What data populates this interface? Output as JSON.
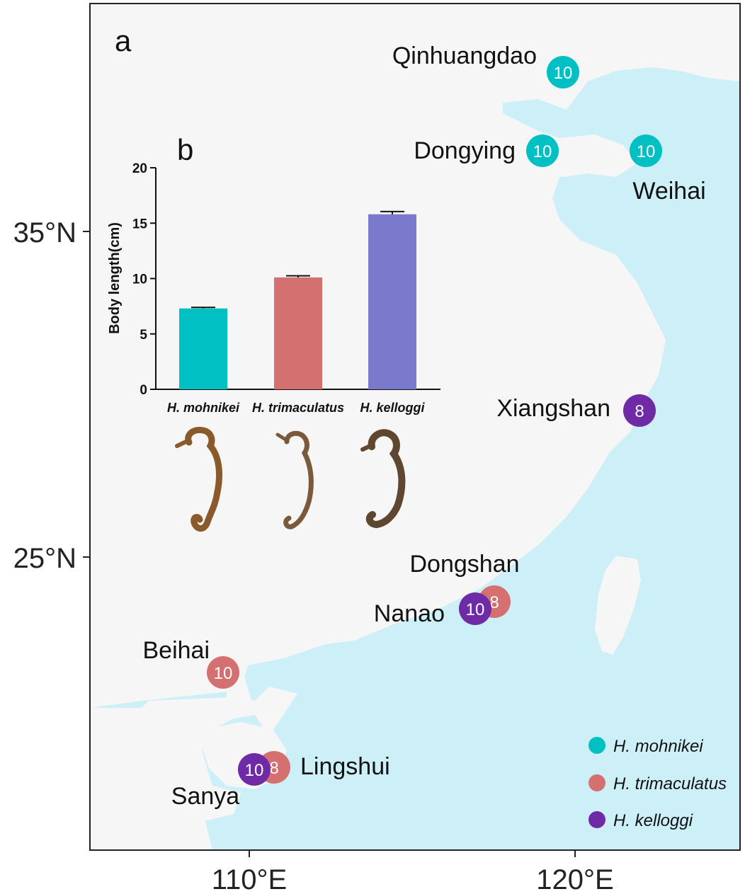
{
  "panel_a_label": "a",
  "panel_b_label": "b",
  "colors": {
    "land": "#f6f6f6",
    "sea": "#cdf0f8",
    "mohnikei": "#00c0c4",
    "trimaculatus": "#d4706f",
    "kelloggi": "#6f2aa6",
    "bar_kelloggi": "#7a79cc"
  },
  "map_axes": {
    "lat_ticks": [
      "35°N",
      "25°N"
    ],
    "lon_ticks": [
      "110°E",
      "120°E"
    ]
  },
  "sites": [
    {
      "name": "Qinhuangdao",
      "species": "mohnikei",
      "count": "10"
    },
    {
      "name": "Dongying",
      "species": "mohnikei",
      "count": "10"
    },
    {
      "name": "Weihai",
      "species": "mohnikei",
      "count": "10"
    },
    {
      "name": "Xiangshan",
      "species": "kelloggi",
      "count": "8"
    },
    {
      "name": "Dongshan",
      "species": "trimaculatus",
      "count": "8"
    },
    {
      "name": "Nanao",
      "species": "kelloggi",
      "count": "10"
    },
    {
      "name": "Beihai",
      "species": "trimaculatus",
      "count": "10"
    },
    {
      "name": "Lingshui",
      "species": "trimaculatus",
      "count": "8"
    },
    {
      "name": "Sanya",
      "species": "kelloggi",
      "count": "10"
    }
  ],
  "legend": [
    {
      "key": "mohnikei",
      "label": "H. mohnikei"
    },
    {
      "key": "trimaculatus",
      "label": "H. trimaculatus"
    },
    {
      "key": "kelloggi",
      "label": "H. kelloggi"
    }
  ],
  "chart_data": {
    "type": "bar",
    "categories": [
      "H. mohnikei",
      "H. trimaculatus",
      "H. kelloggi"
    ],
    "values": [
      7.3,
      10.1,
      15.8
    ],
    "errors": [
      0.1,
      0.15,
      0.25
    ],
    "ylabel": "Body length(cm)",
    "ylim": [
      0,
      20
    ],
    "yticks": [
      0,
      5,
      10,
      15,
      20
    ]
  }
}
